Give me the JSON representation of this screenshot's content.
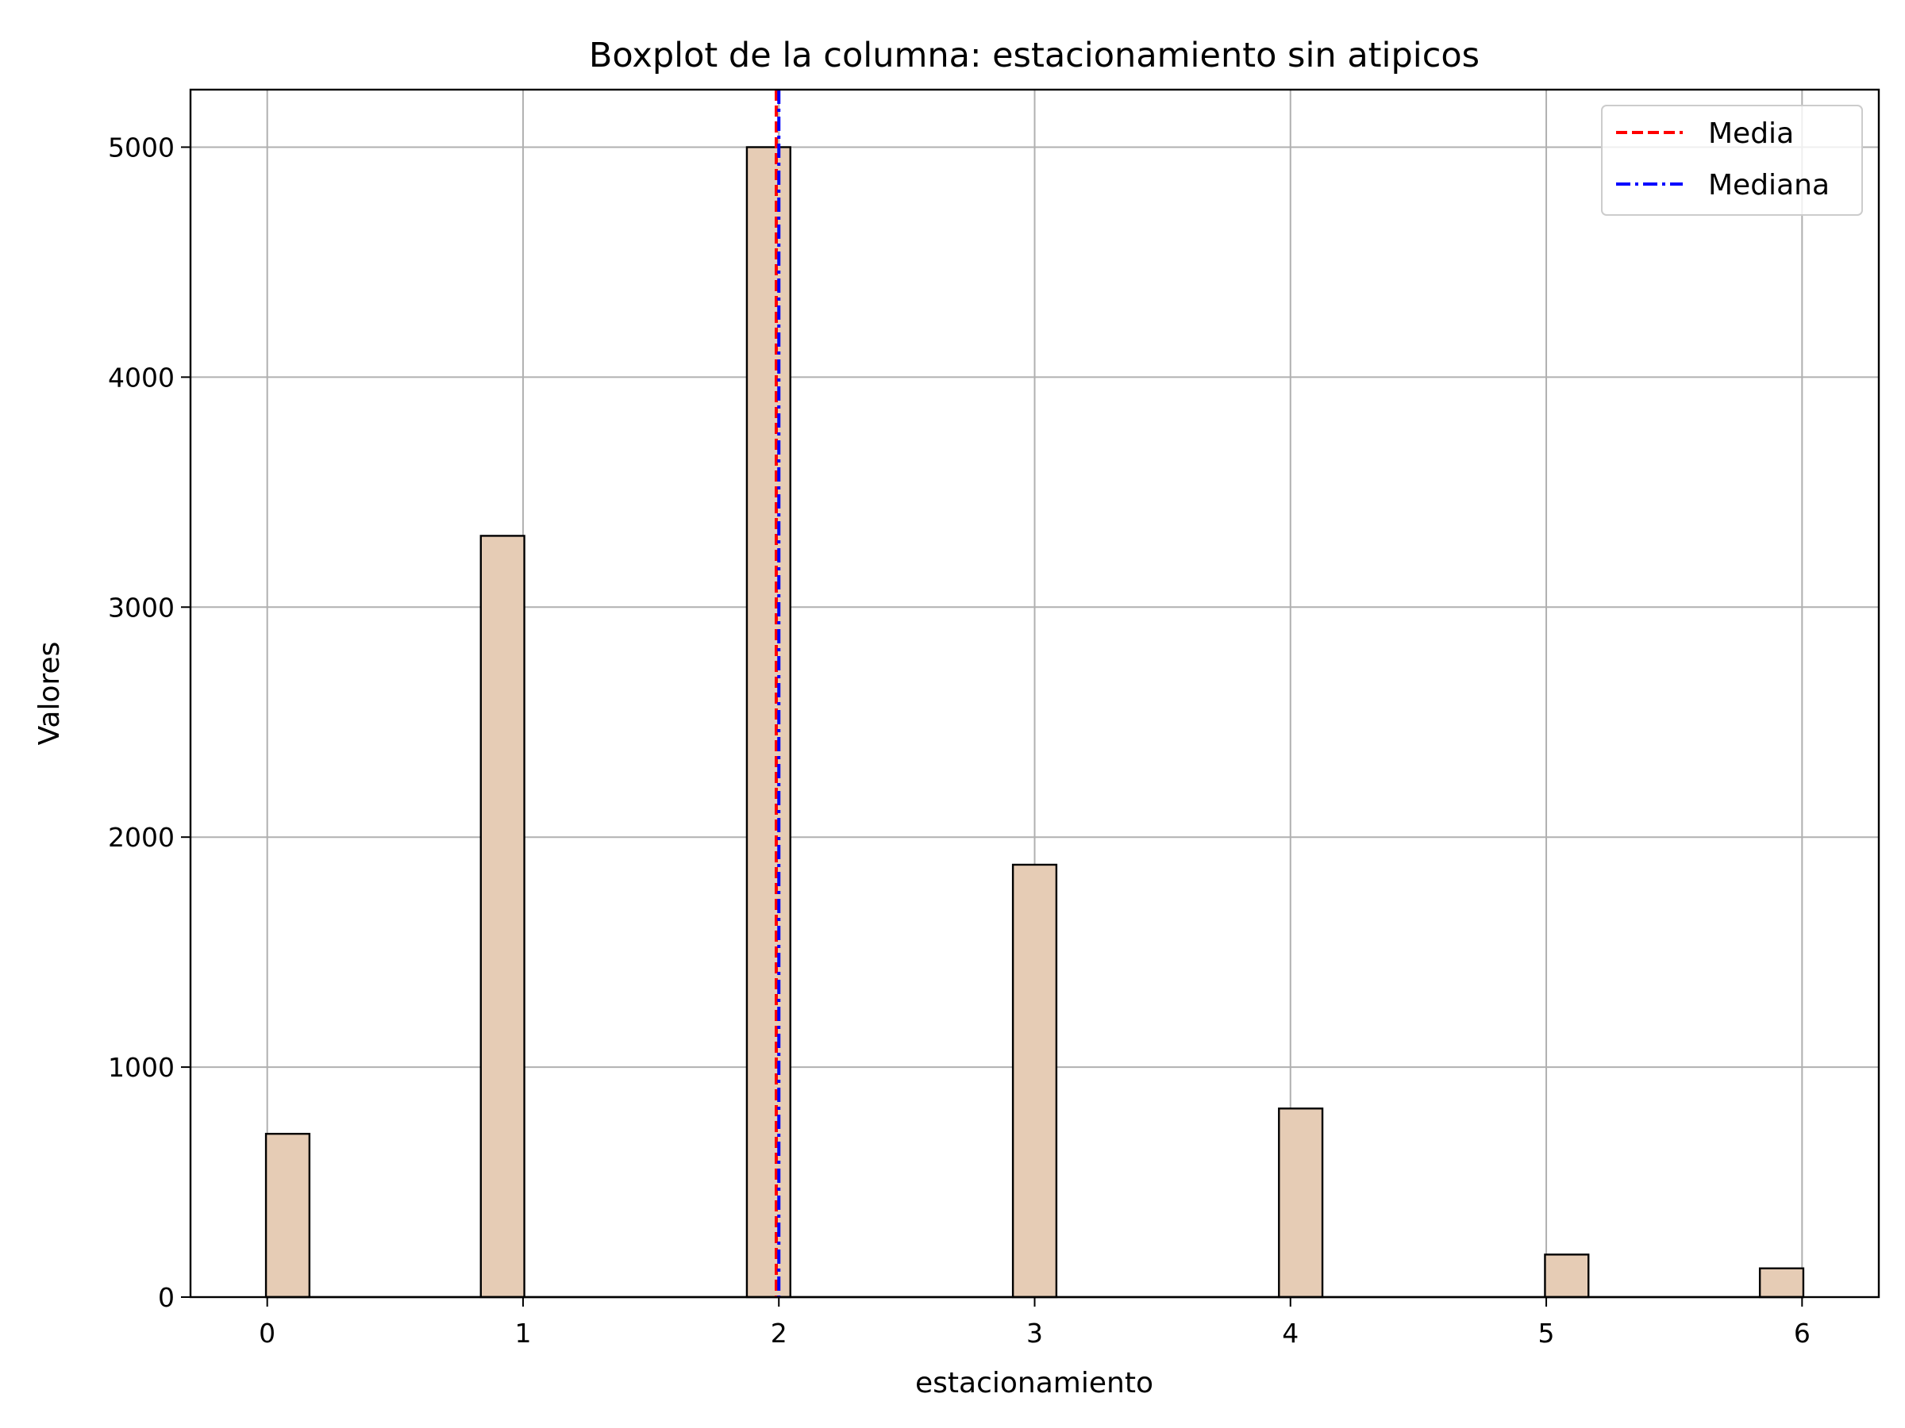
{
  "chart_data": {
    "type": "bar",
    "title": "Boxplot de la columna: estacionamiento sin atipicos",
    "xlabel": "estacionamiento",
    "ylabel": "Valores",
    "xlim": [
      -0.3,
      6.3
    ],
    "ylim": [
      0,
      5250
    ],
    "x_ticks": [
      "0",
      "1",
      "2",
      "3",
      "4",
      "5",
      "6"
    ],
    "y_ticks": [
      "0",
      "1000",
      "2000",
      "3000",
      "4000",
      "5000"
    ],
    "grid": true,
    "bar_width": 0.17,
    "bar_color": "#e6ccb5",
    "bars": [
      {
        "x": 0.08,
        "value": 710
      },
      {
        "x": 0.92,
        "value": 3310
      },
      {
        "x": 1.96,
        "value": 5000
      },
      {
        "x": 3.0,
        "value": 1880
      },
      {
        "x": 4.04,
        "value": 820
      },
      {
        "x": 5.08,
        "value": 185
      },
      {
        "x": 5.92,
        "value": 125
      }
    ],
    "reference_lines": [
      {
        "name": "Media",
        "value": 1.99,
        "color": "#ff0000",
        "style": "dashed"
      },
      {
        "name": "Mediana",
        "value": 2.0,
        "color": "#0000ff",
        "style": "dashdot"
      }
    ],
    "legend": {
      "position": "top-right",
      "entries": [
        "Media",
        "Mediana"
      ]
    }
  }
}
